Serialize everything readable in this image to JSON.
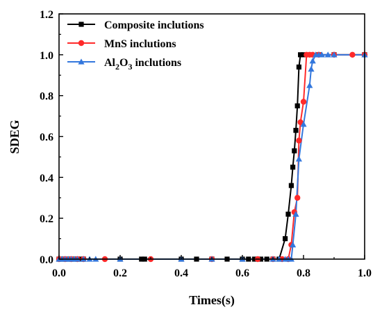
{
  "chart_data": {
    "type": "line",
    "xlabel": "Times(s)",
    "ylabel": "SDEG",
    "xlim": [
      0.0,
      1.0
    ],
    "ylim": [
      0.0,
      1.2
    ],
    "xticks": [
      "0.0",
      "0.2",
      "0.4",
      "0.6",
      "0.8",
      "1.0"
    ],
    "yticks": [
      "0.0",
      "0.2",
      "0.4",
      "0.6",
      "0.8",
      "1.0",
      "1.2"
    ],
    "grid": false,
    "legend_position": "top-left",
    "series": [
      {
        "name": "Composite inclutions",
        "color": "#000000",
        "marker": "square",
        "x": [
          0.0,
          0.01,
          0.02,
          0.03,
          0.04,
          0.05,
          0.06,
          0.07,
          0.08,
          0.2,
          0.27,
          0.28,
          0.4,
          0.45,
          0.5,
          0.55,
          0.6,
          0.62,
          0.64,
          0.66,
          0.68,
          0.7,
          0.72,
          0.74,
          0.75,
          0.76,
          0.765,
          0.77,
          0.775,
          0.78,
          0.785,
          0.79,
          0.8,
          0.85,
          0.9,
          1.0
        ],
        "y": [
          0.0,
          0.0,
          0.0,
          0.0,
          0.0,
          0.0,
          0.0,
          0.0,
          0.0,
          0.0,
          0.0,
          0.0,
          0.0,
          0.0,
          0.0,
          0.0,
          0.0,
          0.0,
          0.0,
          0.0,
          0.0,
          0.0,
          0.0,
          0.1,
          0.22,
          0.36,
          0.45,
          0.53,
          0.63,
          0.75,
          0.94,
          1.0,
          1.0,
          1.0,
          1.0,
          1.0
        ]
      },
      {
        "name": "MnS inclutions",
        "color": "#ff2a2a",
        "marker": "circle",
        "x": [
          0.0,
          0.02,
          0.04,
          0.06,
          0.08,
          0.15,
          0.3,
          0.5,
          0.65,
          0.7,
          0.73,
          0.75,
          0.76,
          0.77,
          0.78,
          0.785,
          0.79,
          0.8,
          0.81,
          0.82,
          0.83,
          0.85,
          0.9,
          0.96,
          1.0
        ],
        "y": [
          0.0,
          0.0,
          0.0,
          0.0,
          0.0,
          0.0,
          0.0,
          0.0,
          0.0,
          0.0,
          0.0,
          0.0,
          0.07,
          0.23,
          0.3,
          0.58,
          0.67,
          0.77,
          1.0,
          1.0,
          1.0,
          1.0,
          1.0,
          1.0,
          1.0
        ]
      },
      {
        "name": "Al2O3 inclutions",
        "color": "#3377dd",
        "marker": "triangle",
        "x": [
          0.0,
          0.01,
          0.02,
          0.03,
          0.04,
          0.05,
          0.06,
          0.08,
          0.1,
          0.12,
          0.2,
          0.4,
          0.5,
          0.6,
          0.7,
          0.72,
          0.74,
          0.75,
          0.76,
          0.765,
          0.775,
          0.785,
          0.8,
          0.82,
          0.825,
          0.83,
          0.84,
          0.85,
          0.86,
          0.88,
          0.9,
          1.0
        ],
        "y": [
          0.0,
          0.0,
          0.0,
          0.0,
          0.0,
          0.0,
          0.0,
          0.0,
          0.0,
          0.0,
          0.0,
          0.0,
          0.0,
          0.0,
          0.0,
          0.0,
          0.0,
          0.0,
          0.0,
          0.07,
          0.22,
          0.49,
          0.66,
          0.85,
          0.93,
          0.97,
          1.0,
          1.0,
          1.0,
          1.0,
          1.0,
          1.0
        ]
      }
    ]
  }
}
